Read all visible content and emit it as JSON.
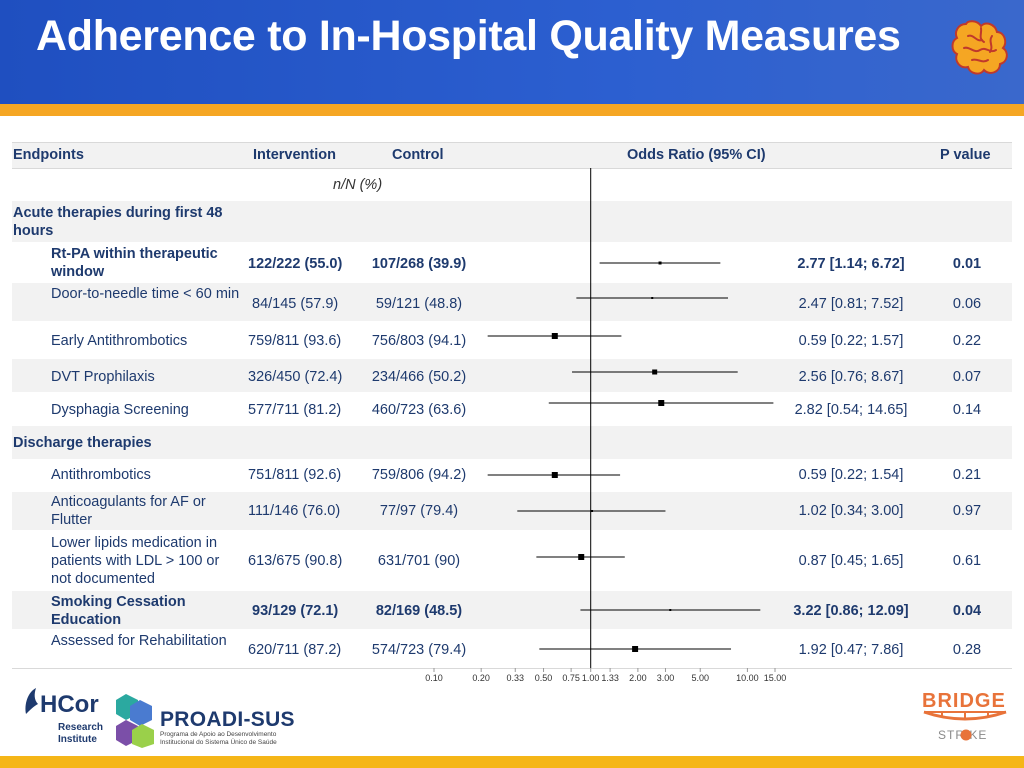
{
  "title": "Adherence to In-Hospital Quality Measures",
  "columns": {
    "endpoints": "Endpoints",
    "intervention": "Intervention",
    "control": "Control",
    "odds_ratio": "Odds Ratio (95% CI)",
    "p_value": "P value",
    "units": "n/N (%)"
  },
  "groups": {
    "acute": "Acute therapies during first 48 hours",
    "discharge": "Discharge therapies"
  },
  "rows": [
    {
      "label": "Rt-PA  within therapeutic window",
      "intervention": "122/222 (55.0)",
      "control": "107/268 (39.9)",
      "or_text": "2.77 [1.14; 6.72]",
      "p": "0.01",
      "bold": true
    },
    {
      "label": "Door-to-needle time < 60 min",
      "intervention": "84/145 (57.9)",
      "control": "59/121 (48.8)",
      "or_text": "2.47 [0.81; 7.52]",
      "p": "0.06",
      "bold": false
    },
    {
      "label": "Early Antithrombotics",
      "intervention": "759/811 (93.6)",
      "control": "756/803 (94.1)",
      "or_text": "0.59 [0.22; 1.57]",
      "p": "0.22",
      "bold": false
    },
    {
      "label": "DVT Prophilaxis",
      "intervention": "326/450 (72.4)",
      "control": "234/466 (50.2)",
      "or_text": "2.56 [0.76; 8.67]",
      "p": "0.07",
      "bold": false
    },
    {
      "label": "Dysphagia Screening",
      "intervention": "577/711 (81.2)",
      "control": "460/723 (63.6)",
      "or_text": "2.82 [0.54; 14.65]",
      "p": "0.14",
      "bold": false
    },
    {
      "label": "Antithrombotics",
      "intervention": "751/811 (92.6)",
      "control": "759/806 (94.2)",
      "or_text": "0.59 [0.22; 1.54]",
      "p": "0.21",
      "bold": false
    },
    {
      "label": "Anticoagulants for AF or Flutter",
      "intervention": "111/146 (76.0)",
      "control": "77/97 (79.4)",
      "or_text": "1.02 [0.34; 3.00]",
      "p": "0.97",
      "bold": false
    },
    {
      "label": "Lower lipids medication in patients with LDL > 100 or not documented",
      "intervention": "613/675 (90.8)",
      "control": "631/701 (90)",
      "or_text": "0.87 [0.45; 1.65]",
      "p": "0.61",
      "bold": false
    },
    {
      "label": "Smoking Cessation Education",
      "intervention": "93/129 (72.1)",
      "control": "82/169 (48.5)",
      "or_text": "3.22 [0.86; 12.09]",
      "p": "0.04",
      "bold": true
    },
    {
      "label": "Assessed for Rehabilitation",
      "intervention": "620/711 (87.2)",
      "control": "574/723 (79.4)",
      "or_text": "1.92 [0.47; 7.86]",
      "p": "0.28",
      "bold": false
    }
  ],
  "chart_data": {
    "type": "scatter",
    "x_scale": "log",
    "reference_line": 1.0,
    "tick_labels": [
      "0.10",
      "0.20",
      "0.33",
      "0.50",
      "0.75",
      "1.00",
      "1.33",
      "2.00",
      "3.00",
      "5.00",
      "10.00",
      "15.00"
    ],
    "tick_values": [
      0.1,
      0.2,
      0.33,
      0.5,
      0.75,
      1.0,
      1.33,
      2.0,
      3.0,
      5.0,
      10.0,
      15.0
    ],
    "series": [
      {
        "or": 2.77,
        "lo": 1.14,
        "hi": 6.72
      },
      {
        "or": 2.47,
        "lo": 0.81,
        "hi": 7.52
      },
      {
        "or": 0.59,
        "lo": 0.22,
        "hi": 1.57
      },
      {
        "or": 2.56,
        "lo": 0.76,
        "hi": 8.67
      },
      {
        "or": 2.82,
        "lo": 0.54,
        "hi": 14.65
      },
      {
        "or": 0.59,
        "lo": 0.22,
        "hi": 1.54
      },
      {
        "or": 1.02,
        "lo": 0.34,
        "hi": 3.0
      },
      {
        "or": 0.87,
        "lo": 0.45,
        "hi": 1.65
      },
      {
        "or": 3.22,
        "lo": 0.86,
        "hi": 12.09
      },
      {
        "or": 1.92,
        "lo": 0.47,
        "hi": 7.86
      }
    ],
    "xlim": [
      0.1,
      15.0
    ]
  },
  "logos": {
    "hcor": "HCor",
    "research_1": "Research",
    "research_2": "Institute",
    "proadi": "PROADI-SUS",
    "proadi_sub": "Programa de Apoio ao Desenvolvimento Institucional do Sistema Único de Saúde",
    "bridge": "BRIDGE",
    "stroke": "STR  KE"
  }
}
